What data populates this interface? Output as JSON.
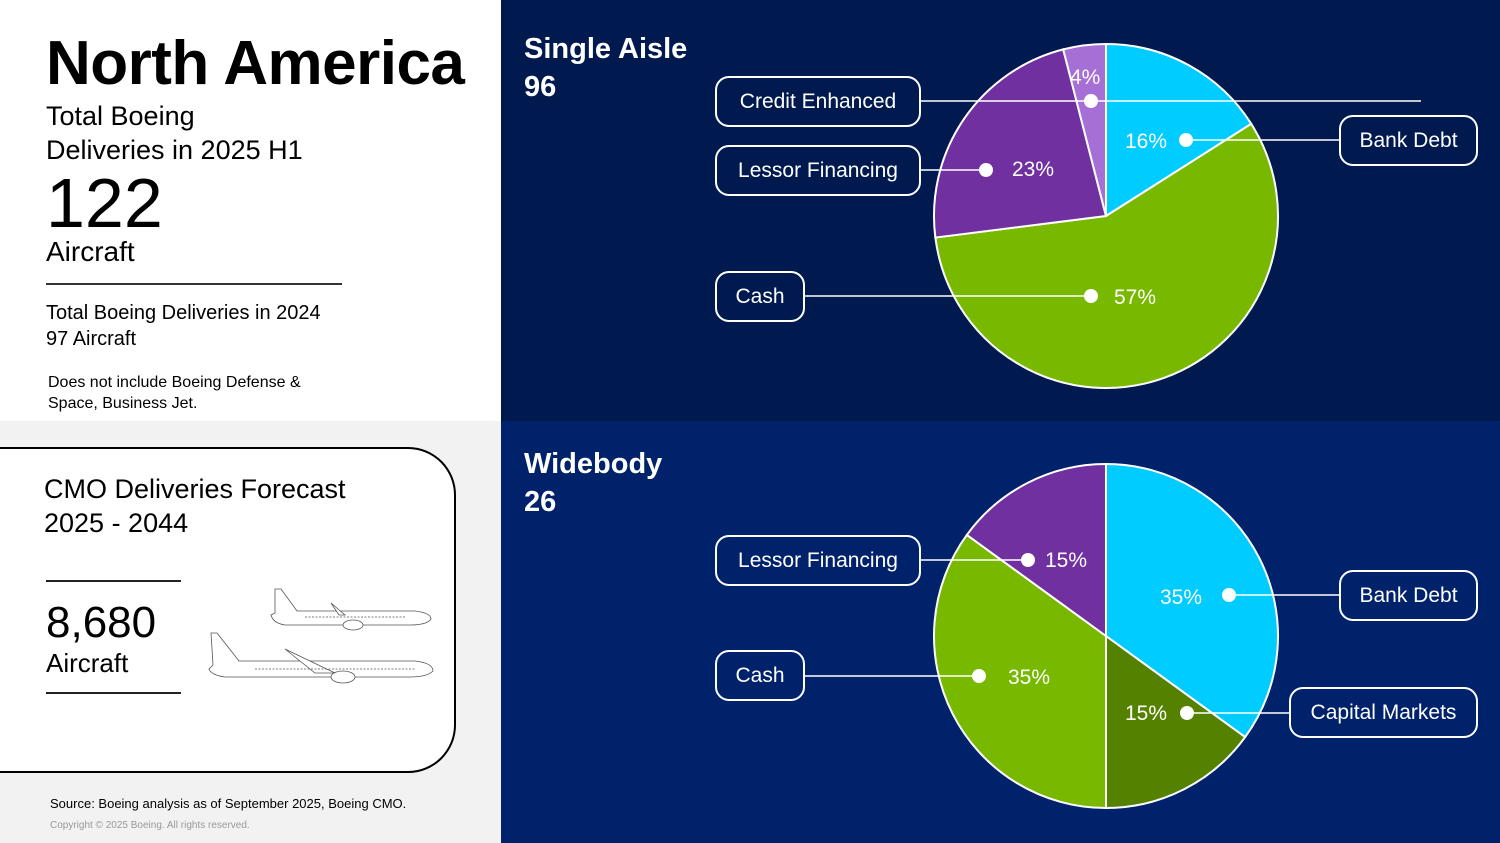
{
  "left": {
    "region": "North America",
    "subtitle_line1": "Total Boeing",
    "subtitle_line2": "Deliveries in 2025 H1",
    "total": "122",
    "unit": "Aircraft",
    "prev_line1": "Total Boeing Deliveries in 2024",
    "prev_line2": "97 Aircraft",
    "note_line1": "Does not include Boeing Defense &",
    "note_line2": "Space, Business Jet."
  },
  "forecast": {
    "title_line1": "CMO Deliveries Forecast",
    "title_line2": "2025 - 2044",
    "value": "8,680",
    "unit": "Aircraft",
    "icon": "airplanes-illustration"
  },
  "footer": {
    "source": "Source: Boeing analysis as of September 2025, Boeing CMO.",
    "copyright": "Copyright © 2025 Boeing. All rights reserved."
  },
  "colors": {
    "bank_debt": "#00ccff",
    "cash": "#78b900",
    "lessor_financing": "#7030a0",
    "credit_enhanced": "#a56fd6",
    "capital_markets": "#548200",
    "panel_top_bg": "#001a50",
    "panel_bottom_bg": "#00226b"
  },
  "chart_data": [
    {
      "type": "pie",
      "title": "Single Aisle",
      "total": "96",
      "categories": [
        "Bank Debt",
        "Cash",
        "Lessor Financing",
        "Credit Enhanced"
      ],
      "values": [
        16,
        57,
        23,
        4
      ],
      "labels": [
        "16%",
        "57%",
        "23%",
        "4%"
      ],
      "start_angle": "12 o'clock, clockwise"
    },
    {
      "type": "pie",
      "title": "Widebody",
      "total": "26",
      "categories": [
        "Bank Debt",
        "Capital Markets",
        "Cash",
        "Lessor Financing"
      ],
      "values": [
        35,
        15,
        35,
        15
      ],
      "labels": [
        "35%",
        "15%",
        "35%",
        "15%"
      ],
      "start_angle": "12 o'clock, clockwise"
    }
  ]
}
